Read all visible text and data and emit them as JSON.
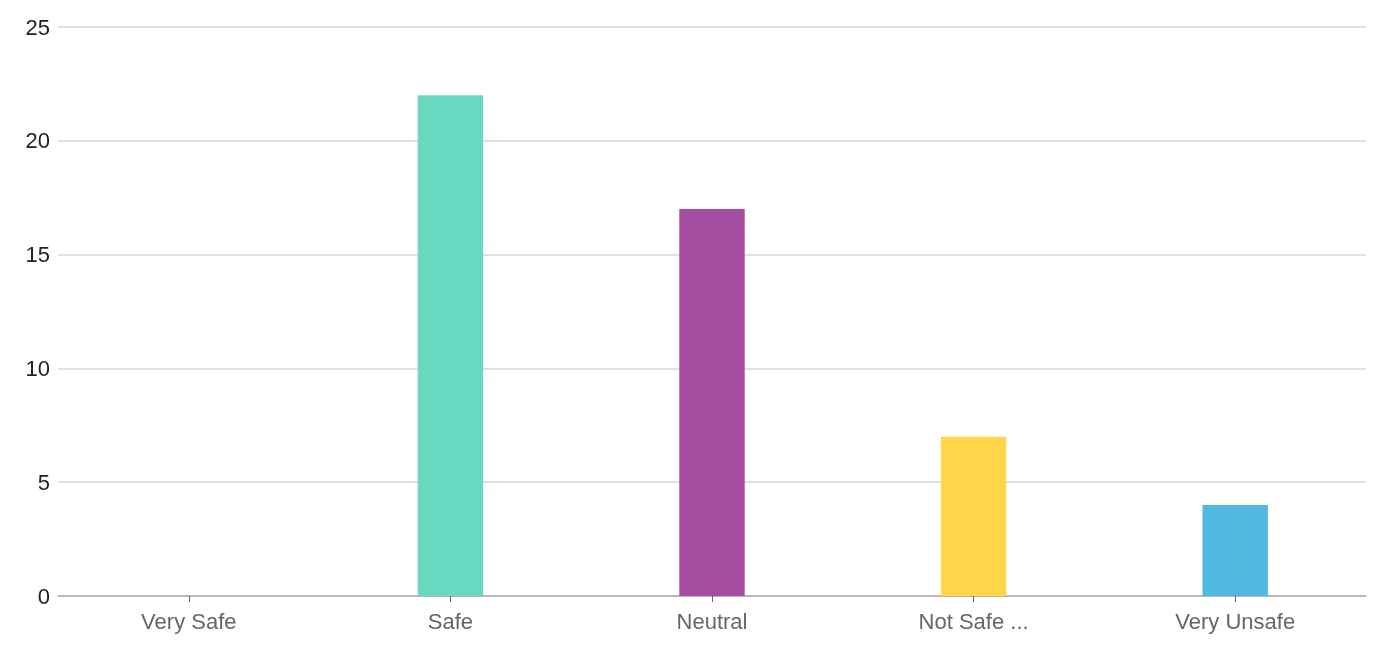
{
  "chart_data": {
    "type": "bar",
    "categories": [
      "Very Safe",
      "Safe",
      "Neutral",
      "Not Safe ...",
      "Very Unsafe"
    ],
    "values": [
      0,
      22,
      17,
      7,
      4
    ],
    "colors": [
      "#f08080",
      "#68d8c0",
      "#a44ca0",
      "#ffd54a",
      "#4fb9e0"
    ],
    "ylim": [
      0,
      25
    ],
    "yticks": [
      0,
      5,
      10,
      15,
      20,
      25
    ],
    "grid": "y"
  }
}
